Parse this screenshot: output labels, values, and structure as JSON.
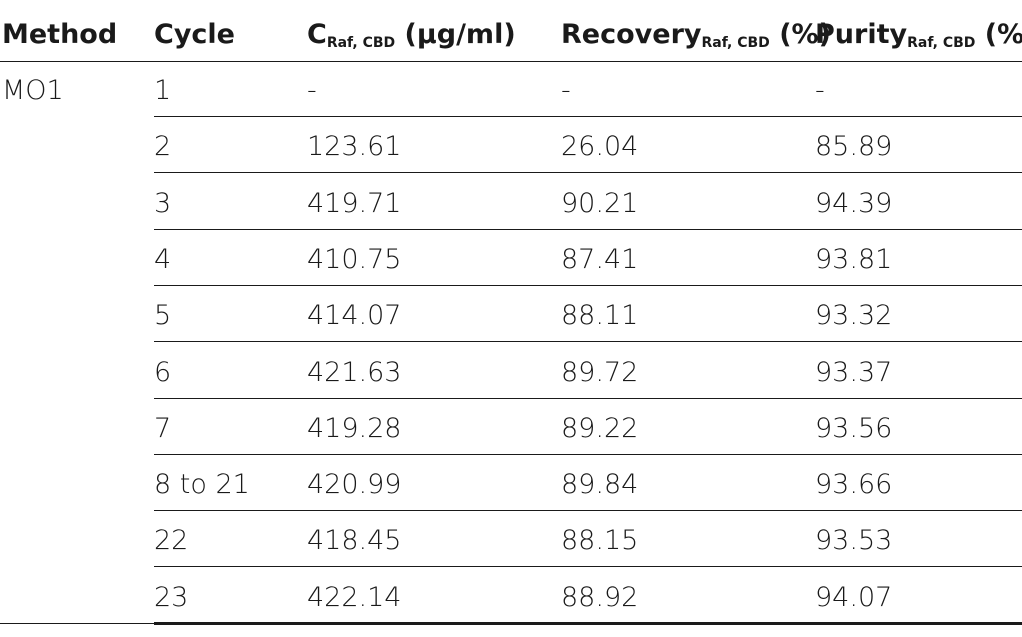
{
  "table": {
    "headers": {
      "method": "Method",
      "cycle": "Cycle",
      "conc_base": "C",
      "conc_sub": "Raf, CBD",
      "conc_unit": " (μg/ml)",
      "recovery_base": "Recovery",
      "recovery_sub": "Raf, CBD",
      "recovery_unit": " (%)",
      "purity_base": "Purity",
      "purity_sub": "Raf, CBD",
      "purity_unit": " (%)"
    },
    "method": "MO1",
    "rows": [
      {
        "cycle": "1",
        "conc": "-",
        "recovery": "-",
        "purity": "-"
      },
      {
        "cycle": "2",
        "conc": "123.61",
        "recovery": "26.04",
        "purity": "85.89"
      },
      {
        "cycle": "3",
        "conc": "419.71",
        "recovery": "90.21",
        "purity": "94.39"
      },
      {
        "cycle": "4",
        "conc": "410.75",
        "recovery": "87.41",
        "purity": "93.81"
      },
      {
        "cycle": "5",
        "conc": "414.07",
        "recovery": "88.11",
        "purity": "93.32"
      },
      {
        "cycle": "6",
        "conc": "421.63",
        "recovery": "89.72",
        "purity": "93.37"
      },
      {
        "cycle": "7",
        "conc": "419.28",
        "recovery": "89.22",
        "purity": "93.56"
      },
      {
        "cycle": "8 to 21",
        "conc": "420.99",
        "recovery": "89.84",
        "purity": "93.66"
      },
      {
        "cycle": "22",
        "conc": "418.45",
        "recovery": "88.15",
        "purity": "93.53"
      },
      {
        "cycle": "23",
        "conc": "422.14",
        "recovery": "88.92",
        "purity": "94.07"
      }
    ]
  }
}
